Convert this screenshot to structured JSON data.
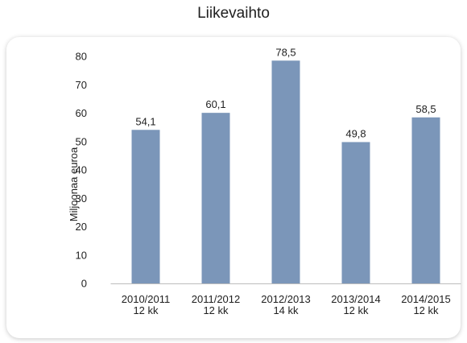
{
  "chart_data": {
    "type": "bar",
    "title": "Liikevaihto",
    "ylabel": "Miljoonaa euroa",
    "xlabel": "",
    "ylim": [
      0,
      80
    ],
    "yticks": [
      0,
      10,
      20,
      30,
      40,
      50,
      60,
      70,
      80
    ],
    "categories": [
      [
        "2010/2011",
        "12 kk"
      ],
      [
        "2011/2012",
        "12 kk"
      ],
      [
        "2012/2013",
        "14 kk"
      ],
      [
        "2013/2014",
        "12 kk"
      ],
      [
        "2014/2015",
        "12 kk"
      ]
    ],
    "values": [
      54.1,
      60.1,
      78.5,
      49.8,
      58.5
    ],
    "data_labels": [
      "54,1",
      "60,1",
      "78,5",
      "49,8",
      "58,5"
    ],
    "bar_color": "#7b96b9",
    "grid": false,
    "legend": "none"
  }
}
